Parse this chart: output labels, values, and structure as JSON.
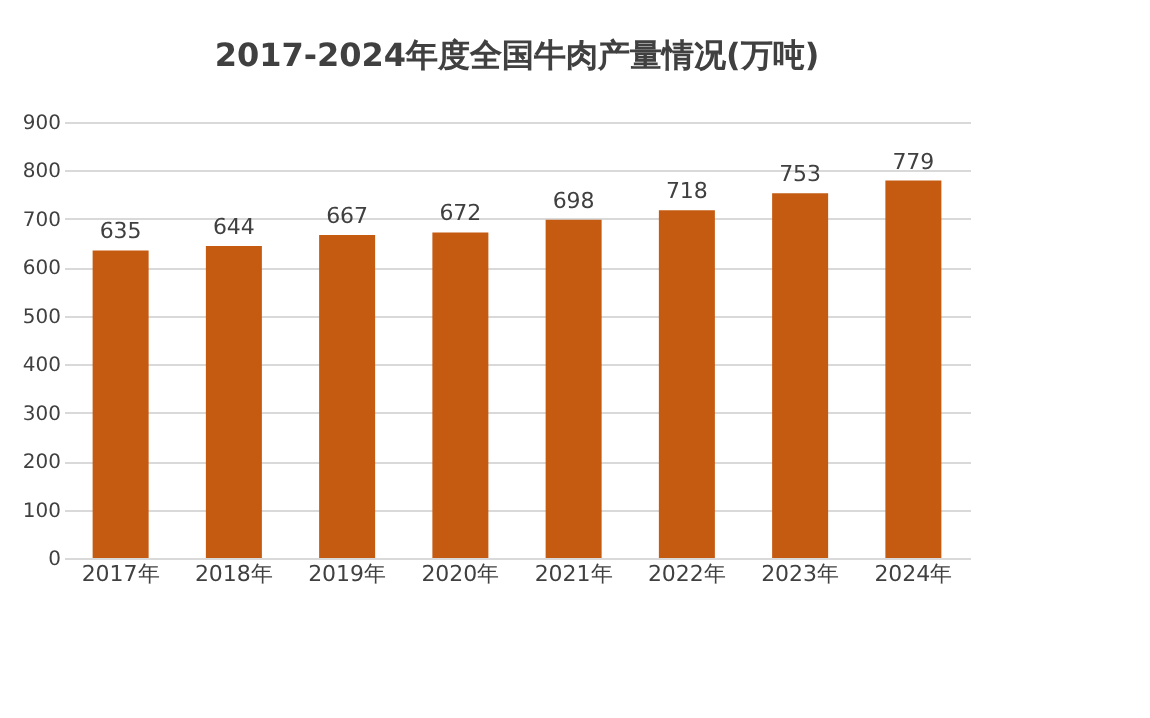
{
  "chart_data": {
    "type": "bar",
    "title": "2017-2024年度全国牛肉产量情况(万吨)",
    "categories": [
      "2017年",
      "2018年",
      "2019年",
      "2020年",
      "2021年",
      "2022年",
      "2023年",
      "2024年"
    ],
    "values": [
      635,
      644,
      667,
      672,
      698,
      718,
      753,
      779
    ],
    "color": "#c55a11",
    "ylim": [
      0,
      900
    ],
    "yticks": [
      0,
      100,
      200,
      300,
      400,
      500,
      600,
      700,
      800,
      900
    ],
    "grid": "y",
    "data_labels": true
  }
}
